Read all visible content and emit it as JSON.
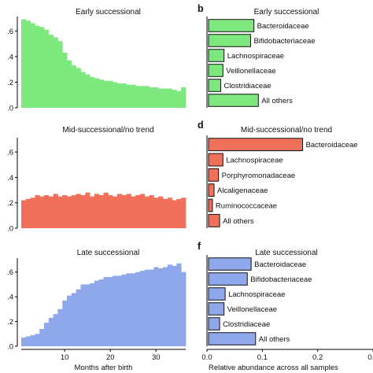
{
  "chart_data": [
    {
      "panel": "a",
      "panel_label": "",
      "type": "bar",
      "title": "Early successional",
      "xlabel": "",
      "ylabel": "",
      "color": "#7de87d",
      "ylim": [
        0,
        0.7
      ],
      "yticks": [
        ".0",
        ".2",
        ".4",
        ".6"
      ],
      "xticks": [],
      "x_months": [
        1,
        2,
        3,
        4,
        5,
        6,
        7,
        8,
        9,
        10,
        11,
        12,
        13,
        14,
        15,
        16,
        17,
        18,
        19,
        20,
        21,
        22,
        23,
        24,
        25,
        26,
        27,
        28,
        29,
        30,
        31,
        32,
        33,
        34,
        35,
        36
      ],
      "values": [
        0.69,
        0.68,
        0.66,
        0.64,
        0.63,
        0.61,
        0.57,
        0.55,
        0.52,
        0.43,
        0.37,
        0.33,
        0.31,
        0.28,
        0.26,
        0.24,
        0.23,
        0.22,
        0.21,
        0.21,
        0.2,
        0.19,
        0.19,
        0.18,
        0.18,
        0.17,
        0.17,
        0.17,
        0.16,
        0.16,
        0.15,
        0.15,
        0.15,
        0.14,
        0.13,
        0.16
      ]
    },
    {
      "panel": "b",
      "panel_label": "b",
      "type": "bar",
      "orientation": "horizontal",
      "title": "Early successional",
      "xlabel": "",
      "color": "#7de87d",
      "xlim": [
        0,
        0.3
      ],
      "xticks": [],
      "categories": [
        "Bacteroidaceae",
        "Bifidobacteriaceae",
        "Lachnospiraceae",
        "Veillonellaceae",
        "Clostridiaceae",
        "All others"
      ],
      "values": [
        0.082,
        0.076,
        0.028,
        0.026,
        0.022,
        0.09
      ]
    },
    {
      "panel": "c",
      "panel_label": "",
      "type": "bar",
      "title": "Mid-successional/no trend",
      "xlabel": "",
      "ylabel": "",
      "color": "#f0705c",
      "ylim": [
        0,
        0.7
      ],
      "yticks": [
        ".0",
        ".2",
        ".4",
        ".6"
      ],
      "xticks": [],
      "x_months": [
        1,
        2,
        3,
        4,
        5,
        6,
        7,
        8,
        9,
        10,
        11,
        12,
        13,
        14,
        15,
        16,
        17,
        18,
        19,
        20,
        21,
        22,
        23,
        24,
        25,
        26,
        27,
        28,
        29,
        30,
        31,
        32,
        33,
        34,
        35,
        36
      ],
      "values": [
        0.22,
        0.23,
        0.24,
        0.26,
        0.25,
        0.26,
        0.25,
        0.27,
        0.25,
        0.26,
        0.25,
        0.26,
        0.27,
        0.26,
        0.28,
        0.25,
        0.27,
        0.26,
        0.28,
        0.26,
        0.25,
        0.27,
        0.26,
        0.27,
        0.25,
        0.26,
        0.27,
        0.25,
        0.26,
        0.24,
        0.25,
        0.23,
        0.24,
        0.22,
        0.23,
        0.24
      ]
    },
    {
      "panel": "d",
      "panel_label": "d",
      "type": "bar",
      "orientation": "horizontal",
      "title": "Mid-successional/no trend",
      "xlabel": "",
      "color": "#f0705c",
      "xlim": [
        0,
        0.3
      ],
      "xticks": [],
      "categories": [
        "Bacteroidaceae",
        "Lachnospiraceae",
        "Porphyromonadaceae",
        "Alcaligenaceae",
        "Ruminococcaceae",
        "All others"
      ],
      "values": [
        0.17,
        0.026,
        0.018,
        0.01,
        0.007,
        0.02
      ]
    },
    {
      "panel": "e",
      "panel_label": "",
      "type": "bar",
      "title": "Late successional",
      "xlabel": "Months after birth",
      "ylabel": "",
      "color": "#8fa8ec",
      "ylim": [
        0,
        0.7
      ],
      "yticks": [
        ".0",
        ".2",
        ".4",
        ".6"
      ],
      "xticks": [
        "10",
        "20",
        "30"
      ],
      "x_months": [
        1,
        2,
        3,
        4,
        5,
        6,
        7,
        8,
        9,
        10,
        11,
        12,
        13,
        14,
        15,
        16,
        17,
        18,
        19,
        20,
        21,
        22,
        23,
        24,
        25,
        26,
        27,
        28,
        29,
        30,
        31,
        32,
        33,
        34,
        35,
        36
      ],
      "values": [
        0.07,
        0.08,
        0.09,
        0.1,
        0.14,
        0.19,
        0.23,
        0.26,
        0.3,
        0.37,
        0.41,
        0.43,
        0.46,
        0.5,
        0.5,
        0.51,
        0.53,
        0.54,
        0.56,
        0.56,
        0.57,
        0.57,
        0.58,
        0.59,
        0.59,
        0.6,
        0.61,
        0.62,
        0.62,
        0.64,
        0.63,
        0.64,
        0.66,
        0.65,
        0.67,
        0.6
      ]
    },
    {
      "panel": "f",
      "panel_label": "f",
      "type": "bar",
      "orientation": "horizontal",
      "title": "Late successional",
      "xlabel": "Relative abundance across all samples",
      "color": "#8fa8ec",
      "xlim": [
        0,
        0.3
      ],
      "xticks": [
        "0.0",
        "0.1",
        "0.2",
        "0.3"
      ],
      "categories": [
        "Bacteroidaceae",
        "Bifidobacteriaceae",
        "Lachnospiraceae",
        "Veillonellaceae",
        "Clostridiaceae",
        "All others"
      ],
      "values": [
        0.077,
        0.07,
        0.03,
        0.028,
        0.02,
        0.085
      ]
    }
  ]
}
